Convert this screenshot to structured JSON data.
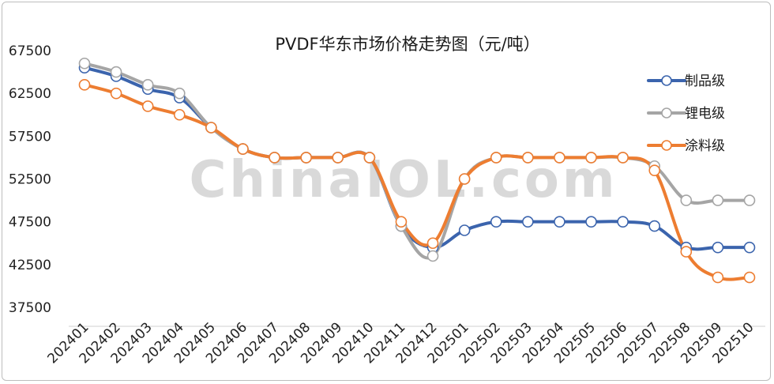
{
  "chart_data": {
    "type": "line",
    "title": "PVDF华东市场价格走势图（元/吨）",
    "watermark": "ChinaIOL.com",
    "categories": [
      "202401",
      "202402",
      "202403",
      "202404",
      "202405",
      "202406",
      "202407",
      "202408",
      "202409",
      "202410",
      "202411",
      "202412",
      "202501",
      "202502",
      "202503",
      "202504",
      "202505",
      "202506",
      "202507",
      "202508",
      "202509",
      "202510"
    ],
    "ylim": [
      37500,
      67500
    ],
    "yticks": [
      37500,
      42500,
      47500,
      52500,
      57500,
      62500,
      67500
    ],
    "legend_position": "top-right",
    "grid": false,
    "series": [
      {
        "name": "制品级",
        "color": "#3b64ad",
        "values": [
          65500,
          64500,
          63000,
          62000,
          58500,
          56000,
          55000,
          55000,
          55000,
          55000,
          47000,
          44500,
          46500,
          47500,
          47500,
          47500,
          47500,
          47500,
          47000,
          44500,
          44500,
          44500
        ]
      },
      {
        "name": "锂电级",
        "color": "#a5a5a5",
        "values": [
          66000,
          65000,
          63500,
          62500,
          58500,
          56000,
          55000,
          55000,
          55000,
          55000,
          47000,
          43500,
          52500,
          55000,
          55000,
          55000,
          55000,
          55000,
          54000,
          50000,
          50000,
          50000
        ]
      },
      {
        "name": "涂料级",
        "color": "#ed7d31",
        "values": [
          63500,
          62500,
          61000,
          60000,
          58500,
          56000,
          55000,
          55000,
          55000,
          55000,
          47500,
          45000,
          52500,
          55000,
          55000,
          55000,
          55000,
          55000,
          53500,
          44000,
          41000,
          41000
        ]
      }
    ]
  }
}
